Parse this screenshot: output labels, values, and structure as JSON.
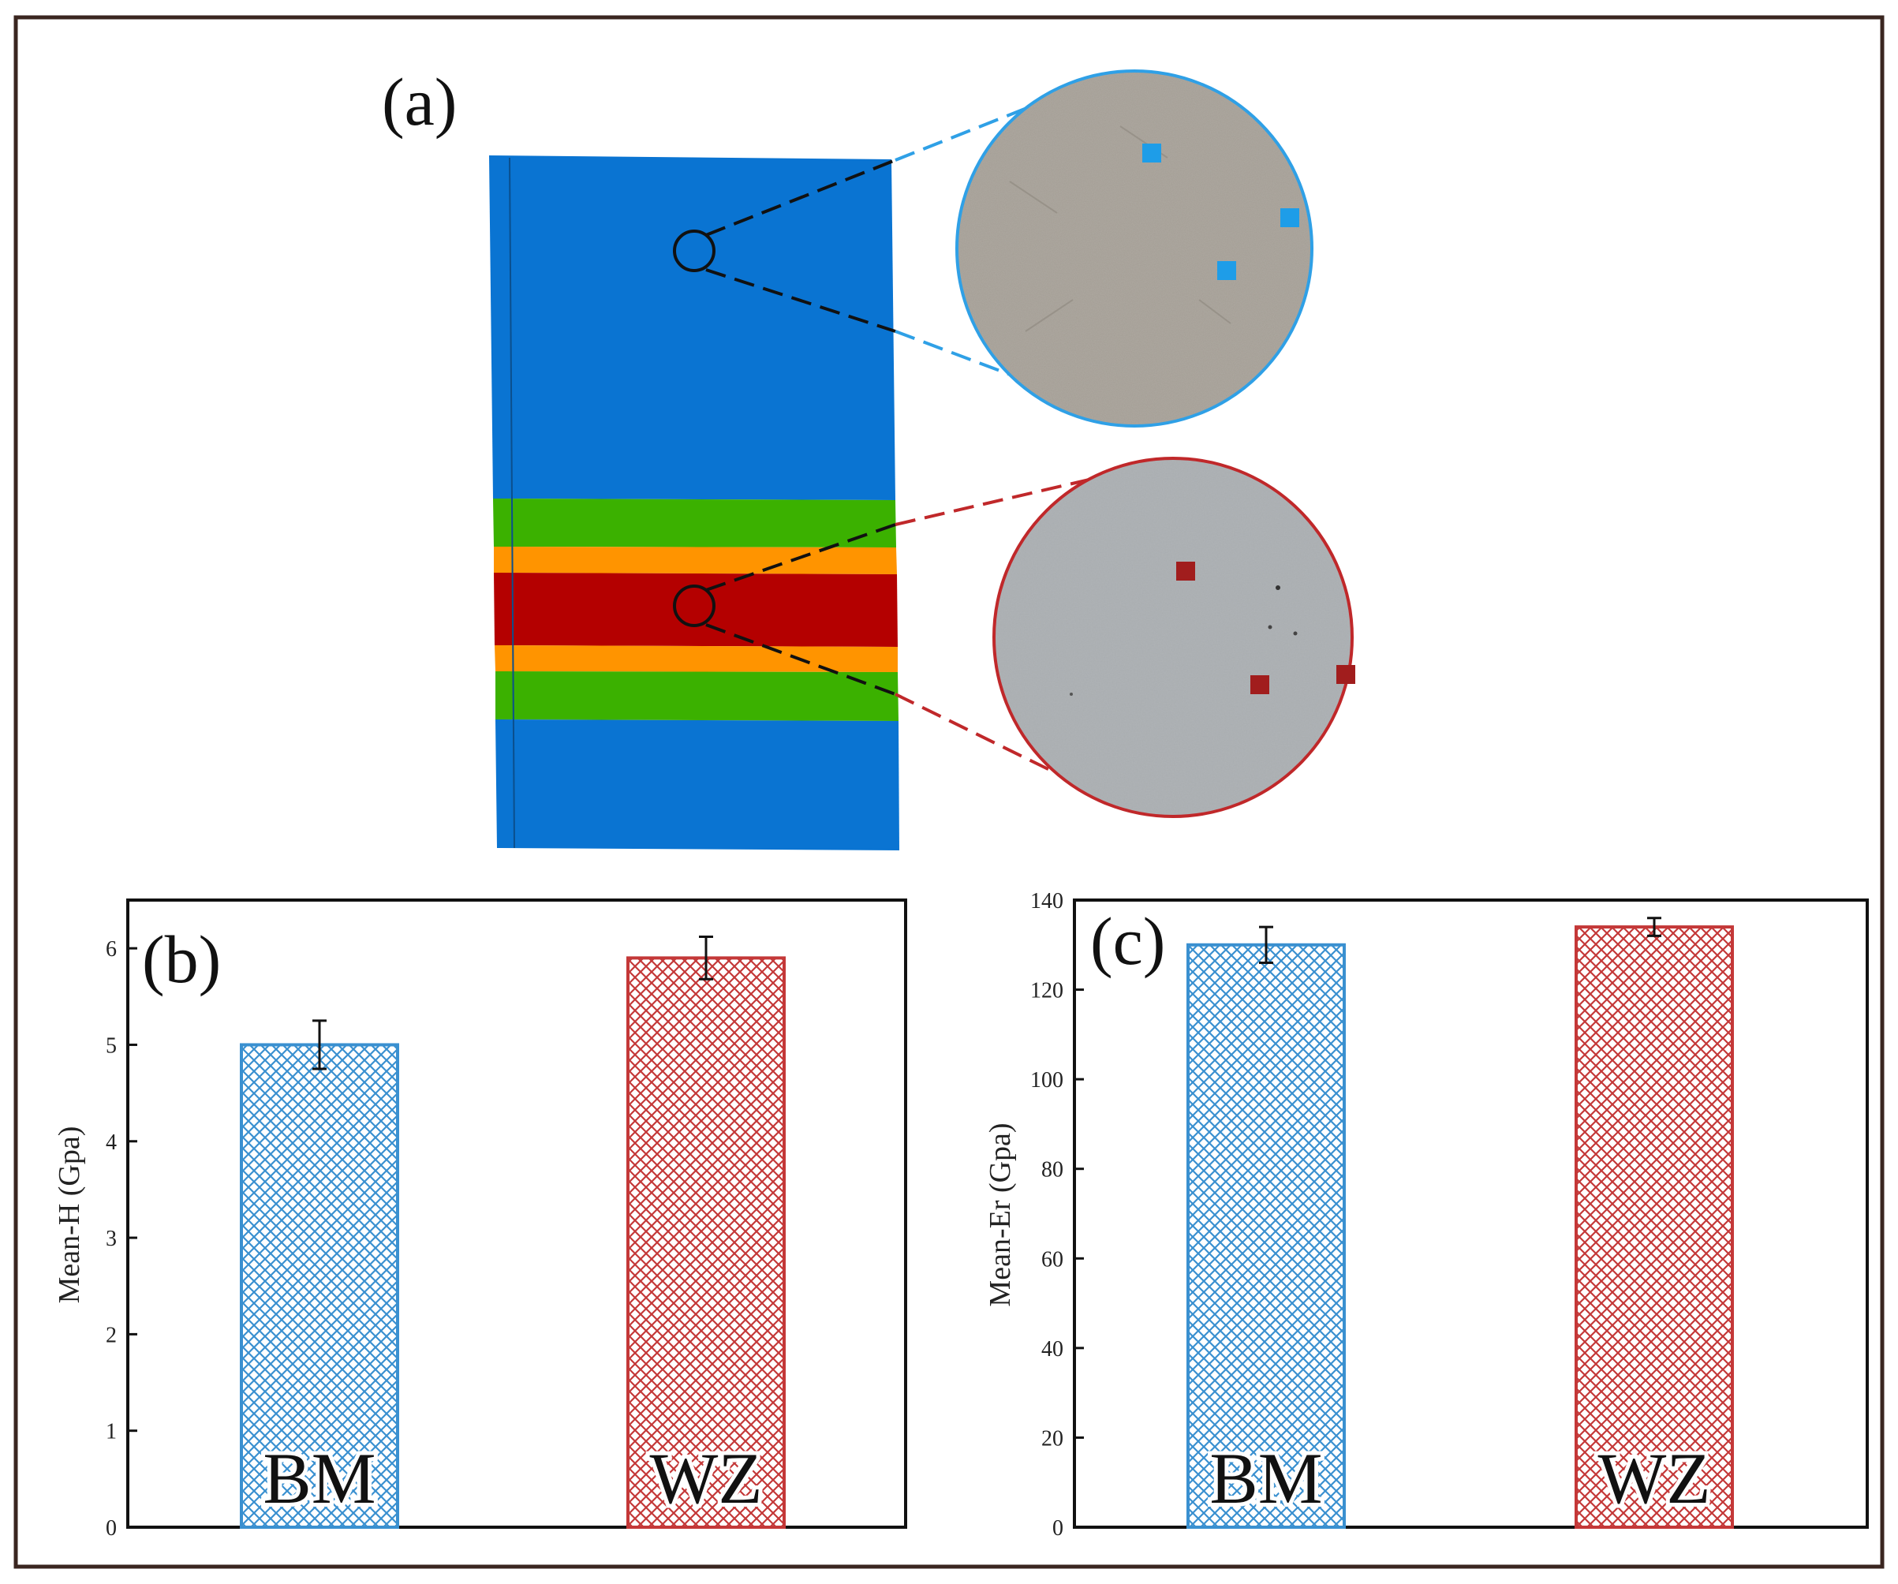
{
  "panel_a": {
    "label": "(a)",
    "colors": {
      "base_metal": "#0a74d2",
      "haz_green": "#3bb100",
      "haz_orange": "#ff9400",
      "weld_zone": "#b40000",
      "bm_accent": "#2fa0e6",
      "wz_accent": "#c0282a",
      "bm_micro": "#a39d94",
      "wz_micro": "#a9adb0"
    },
    "icons": [
      "zoom-circle-icon",
      "indent-marker-icon"
    ]
  },
  "chart_data": [
    {
      "panel": "(b)",
      "type": "bar",
      "categories": [
        "BM",
        "WZ"
      ],
      "values": [
        5.0,
        5.9
      ],
      "errors": [
        0.25,
        0.22
      ],
      "colors": [
        "#3a90d0",
        "#c43838"
      ],
      "xlabel": "",
      "ylabel": "Mean-H (Gpa)",
      "ylim": [
        0,
        6.5
      ],
      "yticks": [
        0,
        1,
        2,
        3,
        4,
        5,
        6
      ],
      "pattern": "crosshatch",
      "grid": false,
      "legend": "none"
    },
    {
      "panel": "(c)",
      "type": "bar",
      "categories": [
        "BM",
        "WZ"
      ],
      "values": [
        130,
        134
      ],
      "errors": [
        4,
        2
      ],
      "colors": [
        "#3a90d0",
        "#c43838"
      ],
      "xlabel": "",
      "ylabel": "Mean-Er (Gpa)",
      "ylim": [
        0,
        140
      ],
      "yticks": [
        0,
        20,
        40,
        60,
        80,
        100,
        120,
        140
      ],
      "pattern": "crosshatch",
      "grid": false,
      "legend": "none"
    }
  ]
}
